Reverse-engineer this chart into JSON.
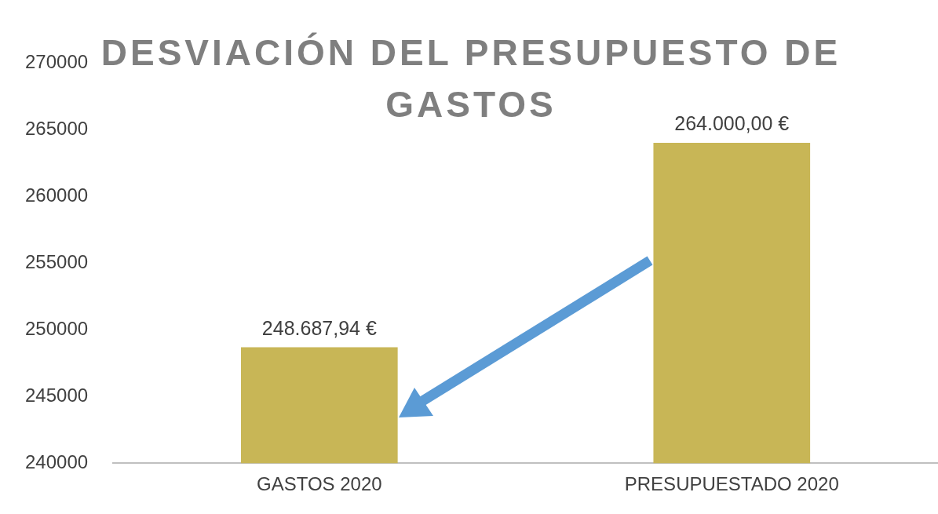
{
  "chart_data": {
    "type": "bar",
    "title": "DESVIACIÓN DEL PRESUPUESTO DE GASTOS",
    "categories": [
      "GASTOS 2020",
      "PRESUPUESTADO 2020"
    ],
    "values": [
      248687.94,
      264000
    ],
    "value_labels": [
      "248.687,94 €",
      "264.000,00 €"
    ],
    "color": "#c8b656",
    "ylim": [
      240000,
      270000
    ],
    "yticks": [
      240000,
      245000,
      250000,
      255000,
      260000,
      265000,
      270000
    ],
    "grid": false,
    "legend": false
  }
}
